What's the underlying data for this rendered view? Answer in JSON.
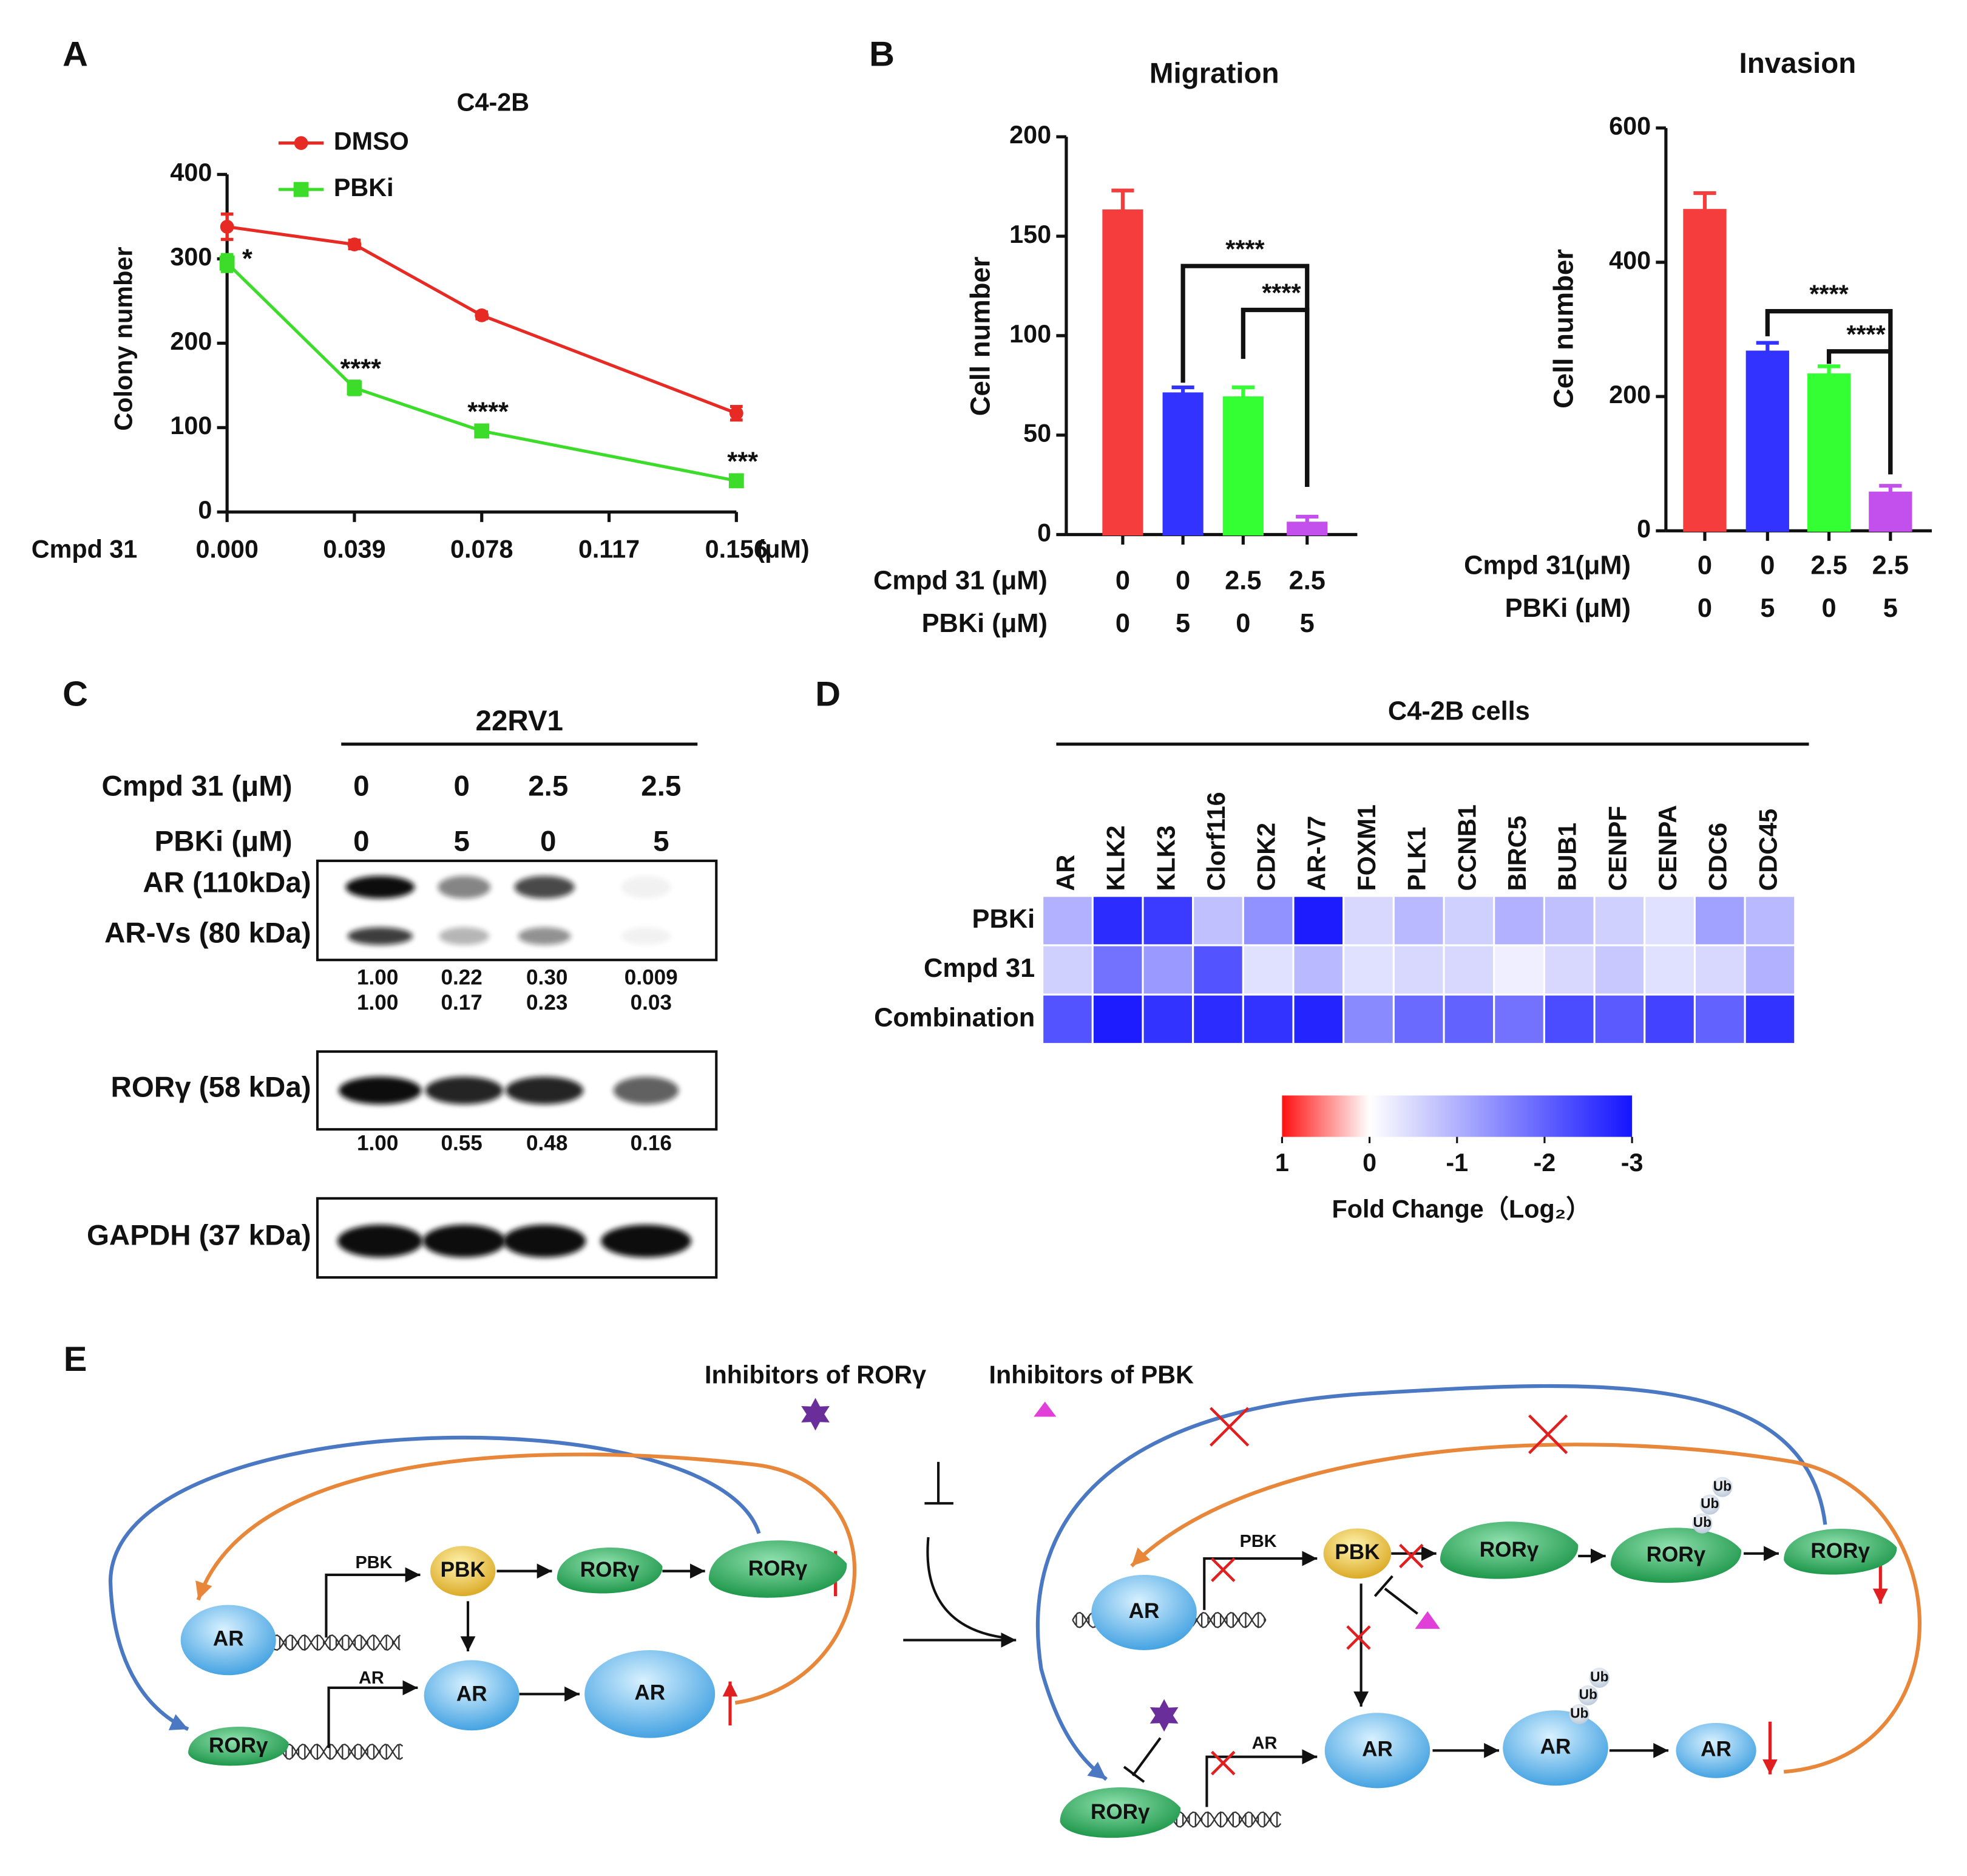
{
  "panel_labels": [
    "A",
    "B",
    "C",
    "D",
    "E"
  ],
  "chart_data": [
    {
      "type": "line",
      "title": "C4-2B",
      "ylabel": "Colony number",
      "xlabel": "Cmpd 31",
      "xunit": "(μM)",
      "x": [
        0,
        0.039,
        0.078,
        0.156
      ],
      "series": [
        {
          "name": "DMSO",
          "color": "#e82a25",
          "marker": "circle",
          "values": [
            338,
            317,
            233,
            117
          ],
          "errors": [
            15,
            5,
            4,
            8
          ]
        },
        {
          "name": "PBKi",
          "color": "#3ddc2b",
          "marker": "square",
          "values": [
            295,
            147,
            96,
            37
          ],
          "errors": [
            10,
            8,
            5,
            4
          ],
          "annotations": [
            "*",
            "****",
            "****",
            "***"
          ]
        }
      ],
      "xlim": [
        0,
        0.156
      ],
      "xticks": [
        {
          "value": 0,
          "label": "0.000"
        },
        0.039,
        0.078,
        0.117,
        0.156
      ],
      "ylim": [
        0,
        400
      ],
      "yticks": [
        0,
        100,
        200,
        300,
        400
      ]
    },
    {
      "type": "bar",
      "title": "Migration",
      "ylabel": "Cell number",
      "condition_rows": [
        {
          "label": "Cmpd 31 (μM)",
          "values": [
            "0",
            "0",
            "2.5",
            "2.5"
          ]
        },
        {
          "label": "PBKi (μM)",
          "values": [
            "0",
            "5",
            "0",
            "5"
          ]
        }
      ],
      "values": [
        163,
        71,
        69,
        6
      ],
      "errors": [
        10,
        3,
        5,
        3
      ],
      "colors": [
        "#f63d3d",
        "#3333ff",
        "#33ff33",
        "#c34fec"
      ],
      "annotations": [
        "****",
        "****"
      ],
      "ylim": [
        0,
        200
      ],
      "yticks": [
        0,
        50,
        100,
        150,
        200
      ]
    },
    {
      "type": "bar",
      "title": "Invasion",
      "ylabel": "Cell number",
      "condition_rows": [
        {
          "label": "Cmpd 31(μM)",
          "values": [
            "0",
            "0",
            "2.5",
            "2.5"
          ]
        },
        {
          "label": "PBKi (μM)",
          "values": [
            "0",
            "5",
            "0",
            "5"
          ]
        }
      ],
      "values": [
        478,
        267,
        233,
        57
      ],
      "errors": [
        25,
        13,
        12,
        10
      ],
      "colors": [
        "#f63d3d",
        "#3333ff",
        "#33ff33",
        "#c34fec"
      ],
      "annotations": [
        "****",
        "****"
      ],
      "ylim": [
        0,
        600
      ],
      "yticks": [
        0,
        200,
        400,
        600
      ]
    },
    {
      "type": "heatmap",
      "title": "C4-2B cells",
      "columns": [
        "AR",
        "KLK2",
        "KLK3",
        "Clorf116",
        "CDK2",
        "AR-V7",
        "FOXM1",
        "PLK1",
        "CCNB1",
        "BIRC5",
        "BUB1",
        "CENPF",
        "CENPA",
        "CDC6",
        "CDC45"
      ],
      "rows": [
        "PBKi",
        "Cmpd 31",
        "Combination"
      ],
      "values": [
        [
          -1.0,
          -2.7,
          -2.5,
          -0.8,
          -1.4,
          -2.9,
          -0.5,
          -0.9,
          -0.6,
          -1.0,
          -0.8,
          -0.6,
          -0.4,
          -1.2,
          -0.9
        ],
        [
          -0.6,
          -1.8,
          -1.3,
          -2.2,
          -0.4,
          -0.9,
          -0.4,
          -0.5,
          -0.5,
          -0.2,
          -0.5,
          -0.7,
          -0.4,
          -0.5,
          -1.0
        ],
        [
          -2.2,
          -2.9,
          -2.6,
          -2.7,
          -2.6,
          -2.8,
          -1.5,
          -1.9,
          -2.0,
          -1.8,
          -2.3,
          -2.1,
          -2.4,
          -2.0,
          -2.6
        ]
      ],
      "clim": [
        1,
        -3
      ],
      "cticks": [
        1,
        0,
        -1,
        -2,
        -3
      ],
      "colormap": [
        "#ff1010",
        "#ffffff",
        "#1414ff"
      ],
      "colorbar_label": "Fold Change（Log₂）"
    }
  ],
  "blot": {
    "cell_line": "22RV1",
    "conditions": [
      {
        "label": "Cmpd 31 (μM)",
        "values": [
          "0",
          "0",
          "2.5",
          "2.5"
        ]
      },
      {
        "label": "PBKi (μM)",
        "values": [
          "0",
          "5",
          "0",
          "5"
        ]
      }
    ],
    "bands": [
      {
        "label": "AR (110kDa)",
        "quant": [
          "1.00",
          "0.22",
          "0.30",
          "0.009"
        ]
      },
      {
        "label": "AR-Vs (80 kDa)",
        "quant": [
          "1.00",
          "0.17",
          "0.23",
          "0.03"
        ]
      },
      {
        "label": "RORγ (58 kDa)",
        "quant": [
          "1.00",
          "0.55",
          "0.48",
          "0.16"
        ]
      },
      {
        "label": "GAPDH (37 kDa)"
      }
    ]
  },
  "diagram": {
    "inhibitor_labels": [
      "Inhibitors of RORγ",
      "Inhibitors of PBK"
    ],
    "nodes": [
      "AR",
      "RORγ",
      "PBK",
      "AR",
      "PBK",
      "RORγ",
      "RORγ",
      "AR",
      "AR",
      "AR",
      "PBK",
      "PBK",
      "RORγ",
      "RORγ",
      "RORγ",
      "RORγ",
      "AR",
      "AR",
      "AR",
      "AR",
      "Ub",
      "Ub",
      "Ub",
      "Ub",
      "Ub",
      "Ub"
    ]
  }
}
